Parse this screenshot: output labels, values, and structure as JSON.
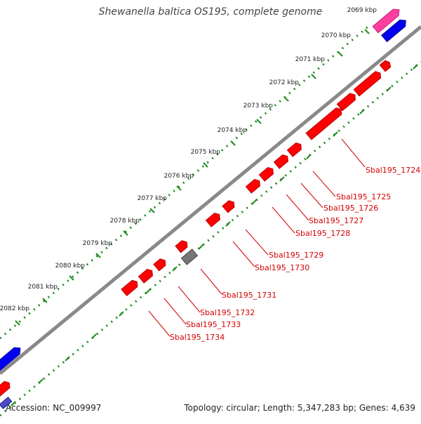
{
  "title": "Shewanella baltica OS195, complete genome",
  "footer": {
    "accession": "Accession: NC_009997",
    "summary": "Topology: circular; Length: 5,347,283 bp; Genes: 4,639"
  },
  "colors": {
    "gene": "#ff0000",
    "gene_dark": "#b80000",
    "gene_other": "#777777",
    "gene_pink": "#ff3fa0",
    "gene_blue": "#0000ee",
    "backbone": "#8a8a8a",
    "ruler": "#1e8a1e",
    "label": "#d40000"
  },
  "scale_labels": [
    "2069 kbp",
    "2070 kbp",
    "2071 kbp",
    "2072 kbp",
    "2073 kbp",
    "2074 kbp",
    "2075 kbp",
    "2076 kbp",
    "2077 kbp",
    "2078 kbp",
    "2079 kbp",
    "2080 kbp",
    "2081 kbp",
    "2082 kbp"
  ],
  "gene_labels": [
    "Sbal195_1724",
    "Sbal195_1725",
    "Sbal195_1726",
    "Sbal195_1727",
    "Sbal195_1728",
    "Sbal195_1729",
    "Sbal195_1730",
    "Sbal195_1731",
    "Sbal195_1732",
    "Sbal195_1733",
    "Sbal195_1734"
  ]
}
